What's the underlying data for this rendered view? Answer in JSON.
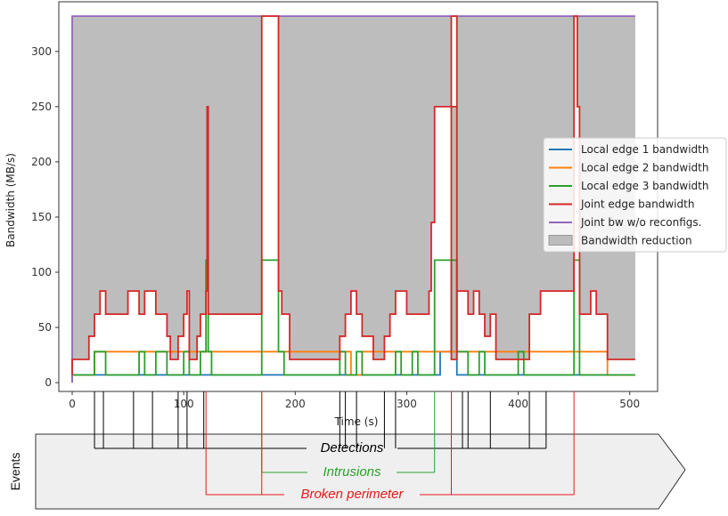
{
  "chart_data": {
    "type": "line",
    "xlabel": "Time (s)",
    "ylabel": "Bandwidth (MB/s)",
    "xlim": [
      -12,
      525
    ],
    "ylim": [
      -8,
      345
    ],
    "xticks": [
      0,
      100,
      200,
      300,
      400,
      500
    ],
    "yticks": [
      0,
      50,
      100,
      150,
      200,
      250,
      300
    ],
    "grid": false,
    "legend_position": "right",
    "series": [
      {
        "name": "Local edge 1 bandwidth",
        "color": "#1f77b4",
        "points": [
          [
            0,
            7
          ],
          [
            330,
            7
          ],
          [
            330,
            28
          ],
          [
            340,
            28
          ],
          [
            340,
            111
          ],
          [
            345,
            111
          ],
          [
            345,
            7
          ],
          [
            505,
            7
          ]
        ]
      },
      {
        "name": "Local edge 2 bandwidth",
        "color": "#ff7f0e",
        "points": [
          [
            0,
            7
          ],
          [
            20,
            7
          ],
          [
            20,
            28
          ],
          [
            250,
            28
          ],
          [
            250,
            7
          ],
          [
            260,
            7
          ],
          [
            260,
            28
          ],
          [
            480,
            28
          ],
          [
            480,
            7
          ],
          [
            505,
            7
          ]
        ]
      },
      {
        "name": "Local edge 3 bandwidth",
        "color": "#2ca02c",
        "points": [
          [
            0,
            0
          ],
          [
            0,
            7
          ],
          [
            20,
            7
          ],
          [
            20,
            28
          ],
          [
            30,
            28
          ],
          [
            30,
            7
          ],
          [
            60,
            7
          ],
          [
            60,
            28
          ],
          [
            65,
            28
          ],
          [
            65,
            7
          ],
          [
            75,
            7
          ],
          [
            75,
            28
          ],
          [
            85,
            28
          ],
          [
            85,
            7
          ],
          [
            100,
            7
          ],
          [
            100,
            28
          ],
          [
            105,
            28
          ],
          [
            105,
            7
          ],
          [
            115,
            7
          ],
          [
            115,
            28
          ],
          [
            120,
            28
          ],
          [
            120,
            111
          ],
          [
            122,
            111
          ],
          [
            122,
            28
          ],
          [
            125,
            28
          ],
          [
            125,
            7
          ],
          [
            170,
            7
          ],
          [
            170,
            111
          ],
          [
            185,
            111
          ],
          [
            185,
            28
          ],
          [
            190,
            28
          ],
          [
            190,
            7
          ],
          [
            240,
            7
          ],
          [
            240,
            28
          ],
          [
            245,
            28
          ],
          [
            245,
            7
          ],
          [
            255,
            7
          ],
          [
            255,
            28
          ],
          [
            260,
            28
          ],
          [
            260,
            7
          ],
          [
            290,
            7
          ],
          [
            290,
            28
          ],
          [
            295,
            28
          ],
          [
            295,
            7
          ],
          [
            305,
            7
          ],
          [
            305,
            28
          ],
          [
            310,
            28
          ],
          [
            310,
            7
          ],
          [
            325,
            7
          ],
          [
            325,
            111
          ],
          [
            345,
            111
          ],
          [
            345,
            28
          ],
          [
            355,
            28
          ],
          [
            355,
            7
          ],
          [
            365,
            7
          ],
          [
            365,
            28
          ],
          [
            370,
            28
          ],
          [
            370,
            7
          ],
          [
            400,
            7
          ],
          [
            400,
            28
          ],
          [
            405,
            28
          ],
          [
            405,
            7
          ],
          [
            450,
            7
          ],
          [
            450,
            111
          ],
          [
            455,
            111
          ],
          [
            455,
            7
          ],
          [
            505,
            7
          ]
        ]
      },
      {
        "name": "Joint edge bandwidth",
        "color": "#d62728",
        "points": [
          [
            0,
            7
          ],
          [
            0,
            21
          ],
          [
            15,
            21
          ],
          [
            15,
            42
          ],
          [
            20,
            42
          ],
          [
            20,
            62
          ],
          [
            25,
            62
          ],
          [
            25,
            83
          ],
          [
            30,
            83
          ],
          [
            30,
            62
          ],
          [
            50,
            62
          ],
          [
            50,
            83
          ],
          [
            60,
            83
          ],
          [
            60,
            62
          ],
          [
            65,
            62
          ],
          [
            65,
            83
          ],
          [
            75,
            83
          ],
          [
            75,
            62
          ],
          [
            85,
            62
          ],
          [
            85,
            42
          ],
          [
            88,
            42
          ],
          [
            88,
            21
          ],
          [
            95,
            21
          ],
          [
            95,
            42
          ],
          [
            100,
            42
          ],
          [
            100,
            62
          ],
          [
            103,
            62
          ],
          [
            103,
            83
          ],
          [
            105,
            83
          ],
          [
            105,
            21
          ],
          [
            112,
            21
          ],
          [
            112,
            42
          ],
          [
            115,
            42
          ],
          [
            115,
            62
          ],
          [
            120,
            62
          ],
          [
            120,
            83
          ],
          [
            121,
            83
          ],
          [
            121,
            250
          ],
          [
            122,
            250
          ],
          [
            122,
            62
          ],
          [
            170,
            62
          ],
          [
            170,
            332
          ],
          [
            185,
            332
          ],
          [
            185,
            83
          ],
          [
            188,
            83
          ],
          [
            188,
            62
          ],
          [
            195,
            62
          ],
          [
            195,
            21
          ],
          [
            240,
            21
          ],
          [
            240,
            42
          ],
          [
            245,
            42
          ],
          [
            245,
            62
          ],
          [
            250,
            62
          ],
          [
            250,
            83
          ],
          [
            255,
            83
          ],
          [
            255,
            62
          ],
          [
            260,
            62
          ],
          [
            260,
            42
          ],
          [
            270,
            42
          ],
          [
            270,
            21
          ],
          [
            280,
            21
          ],
          [
            280,
            42
          ],
          [
            285,
            42
          ],
          [
            285,
            62
          ],
          [
            290,
            62
          ],
          [
            290,
            83
          ],
          [
            300,
            83
          ],
          [
            300,
            62
          ],
          [
            320,
            62
          ],
          [
            320,
            83
          ],
          [
            322,
            83
          ],
          [
            322,
            145
          ],
          [
            325,
            145
          ],
          [
            325,
            250
          ],
          [
            345,
            250
          ],
          [
            345,
            21
          ],
          [
            340,
            21
          ],
          [
            340,
            332
          ],
          [
            345,
            332
          ],
          [
            345,
            83
          ],
          [
            355,
            83
          ],
          [
            355,
            62
          ],
          [
            360,
            62
          ],
          [
            360,
            83
          ],
          [
            365,
            83
          ],
          [
            365,
            62
          ],
          [
            370,
            62
          ],
          [
            370,
            42
          ],
          [
            375,
            42
          ],
          [
            375,
            62
          ],
          [
            380,
            62
          ],
          [
            380,
            21
          ],
          [
            410,
            21
          ],
          [
            410,
            62
          ],
          [
            420,
            62
          ],
          [
            420,
            83
          ],
          [
            450,
            83
          ],
          [
            450,
            332
          ],
          [
            453,
            332
          ],
          [
            453,
            250
          ],
          [
            455,
            250
          ],
          [
            455,
            62
          ],
          [
            465,
            62
          ],
          [
            465,
            83
          ],
          [
            470,
            83
          ],
          [
            470,
            62
          ],
          [
            480,
            62
          ],
          [
            480,
            21
          ],
          [
            505,
            21
          ]
        ]
      },
      {
        "name": "Joint bw w/o reconfigs.",
        "color": "#9467bd",
        "points": [
          [
            0,
            0
          ],
          [
            0,
            332
          ],
          [
            505,
            332
          ]
        ]
      }
    ],
    "area": {
      "name": "Bandwidth reduction",
      "color": "#bdbdbd"
    },
    "events": {
      "title": "Events",
      "detections": {
        "label": "Detections",
        "color": "#000000",
        "times": [
          20,
          28,
          55,
          72,
          95,
          103,
          118,
          240,
          245,
          255,
          280,
          290,
          350,
          355,
          375,
          410,
          425
        ]
      },
      "intrusions": {
        "label": "Intrusions",
        "color": "#2ca02c",
        "times": [
          170,
          325
        ]
      },
      "broken_perimeter": {
        "label": "Broken perimeter",
        "color": "#e8191b",
        "times": [
          120,
          170,
          340,
          450
        ]
      }
    }
  }
}
